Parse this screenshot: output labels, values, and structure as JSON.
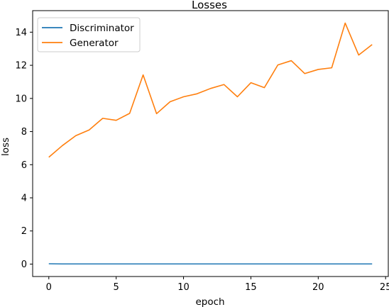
{
  "chart_data": {
    "type": "line",
    "title": "Losses",
    "xlabel": "epoch",
    "ylabel": "loss",
    "xlim": [
      -1.2,
      25.2
    ],
    "ylim": [
      -0.75,
      15.3
    ],
    "xticks": [
      0,
      5,
      10,
      15,
      20,
      25
    ],
    "yticks": [
      0,
      2,
      4,
      6,
      8,
      10,
      12,
      14
    ],
    "grid": false,
    "legend_position": "top-left",
    "x": [
      0,
      1,
      2,
      3,
      4,
      5,
      6,
      7,
      8,
      9,
      10,
      11,
      12,
      13,
      14,
      15,
      16,
      17,
      18,
      19,
      20,
      21,
      22,
      23,
      24
    ],
    "series": [
      {
        "name": "Discriminator",
        "color": "#1f77b4",
        "values": [
          0.02,
          0.01,
          0.01,
          0.01,
          0.01,
          0.01,
          0.01,
          0.01,
          0.01,
          0.01,
          0.01,
          0.01,
          0.01,
          0.01,
          0.01,
          0.01,
          0.01,
          0.01,
          0.01,
          0.01,
          0.01,
          0.01,
          0.01,
          0.01,
          0.01
        ]
      },
      {
        "name": "Generator",
        "color": "#ff7f0e",
        "values": [
          6.45,
          7.15,
          7.75,
          8.1,
          8.8,
          8.68,
          9.1,
          11.42,
          9.08,
          9.8,
          10.1,
          10.28,
          10.6,
          10.84,
          10.1,
          10.95,
          10.65,
          12.02,
          12.28,
          11.5,
          11.75,
          11.85,
          14.55,
          12.62,
          13.25
        ]
      }
    ]
  }
}
